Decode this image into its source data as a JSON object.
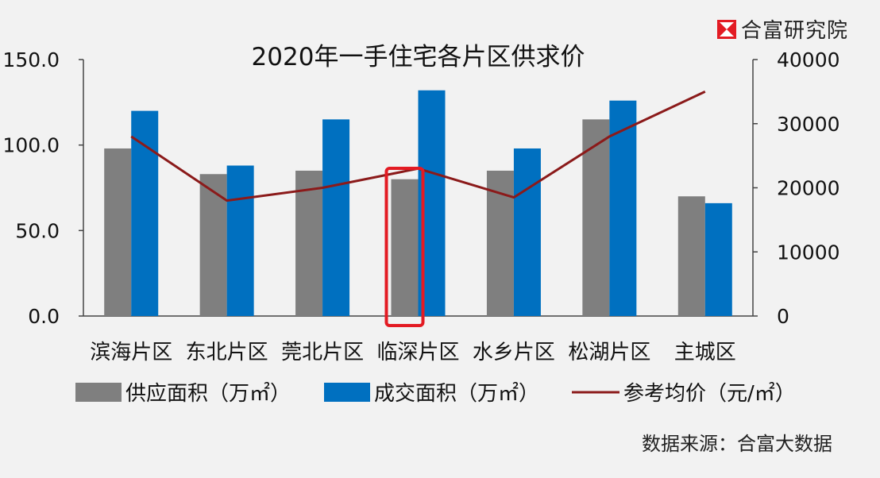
{
  "brand": {
    "name": "合富研究院"
  },
  "source": "数据来源：合富大数据",
  "colors": {
    "supply": "#7f7f7f",
    "sold": "#0070c0",
    "price": "#8b1a1a",
    "highlight": "#e31b23",
    "axis": "#444444"
  },
  "chart_data": {
    "type": "bar",
    "title": "2020年一手住宅各片区供求价",
    "categories": [
      "滨海片区",
      "东北片区",
      "莞北片区",
      "临深片区",
      "水乡片区",
      "松湖片区",
      "主城区"
    ],
    "series": [
      {
        "name": "供应面积（万㎡）",
        "kind": "bar",
        "axis": "left",
        "values": [
          98,
          83,
          85,
          80,
          85,
          115,
          70
        ]
      },
      {
        "name": "成交面积（万㎡）",
        "kind": "bar",
        "axis": "left",
        "values": [
          120,
          88,
          115,
          132,
          98,
          126,
          66
        ]
      },
      {
        "name": "参考均价（元/㎡）",
        "kind": "line",
        "axis": "right",
        "values": [
          28000,
          18000,
          20000,
          23000,
          18500,
          28000,
          35000
        ]
      }
    ],
    "y_left": {
      "min": 0,
      "max": 150,
      "ticks": [
        "0.0",
        "50.0",
        "100.0",
        "150.0"
      ]
    },
    "y_right": {
      "min": 0,
      "max": 40000,
      "ticks": [
        "0",
        "10000",
        "20000",
        "30000",
        "40000"
      ]
    },
    "highlighted_category": "临深片区",
    "grid": false,
    "legend_position": "bottom"
  }
}
